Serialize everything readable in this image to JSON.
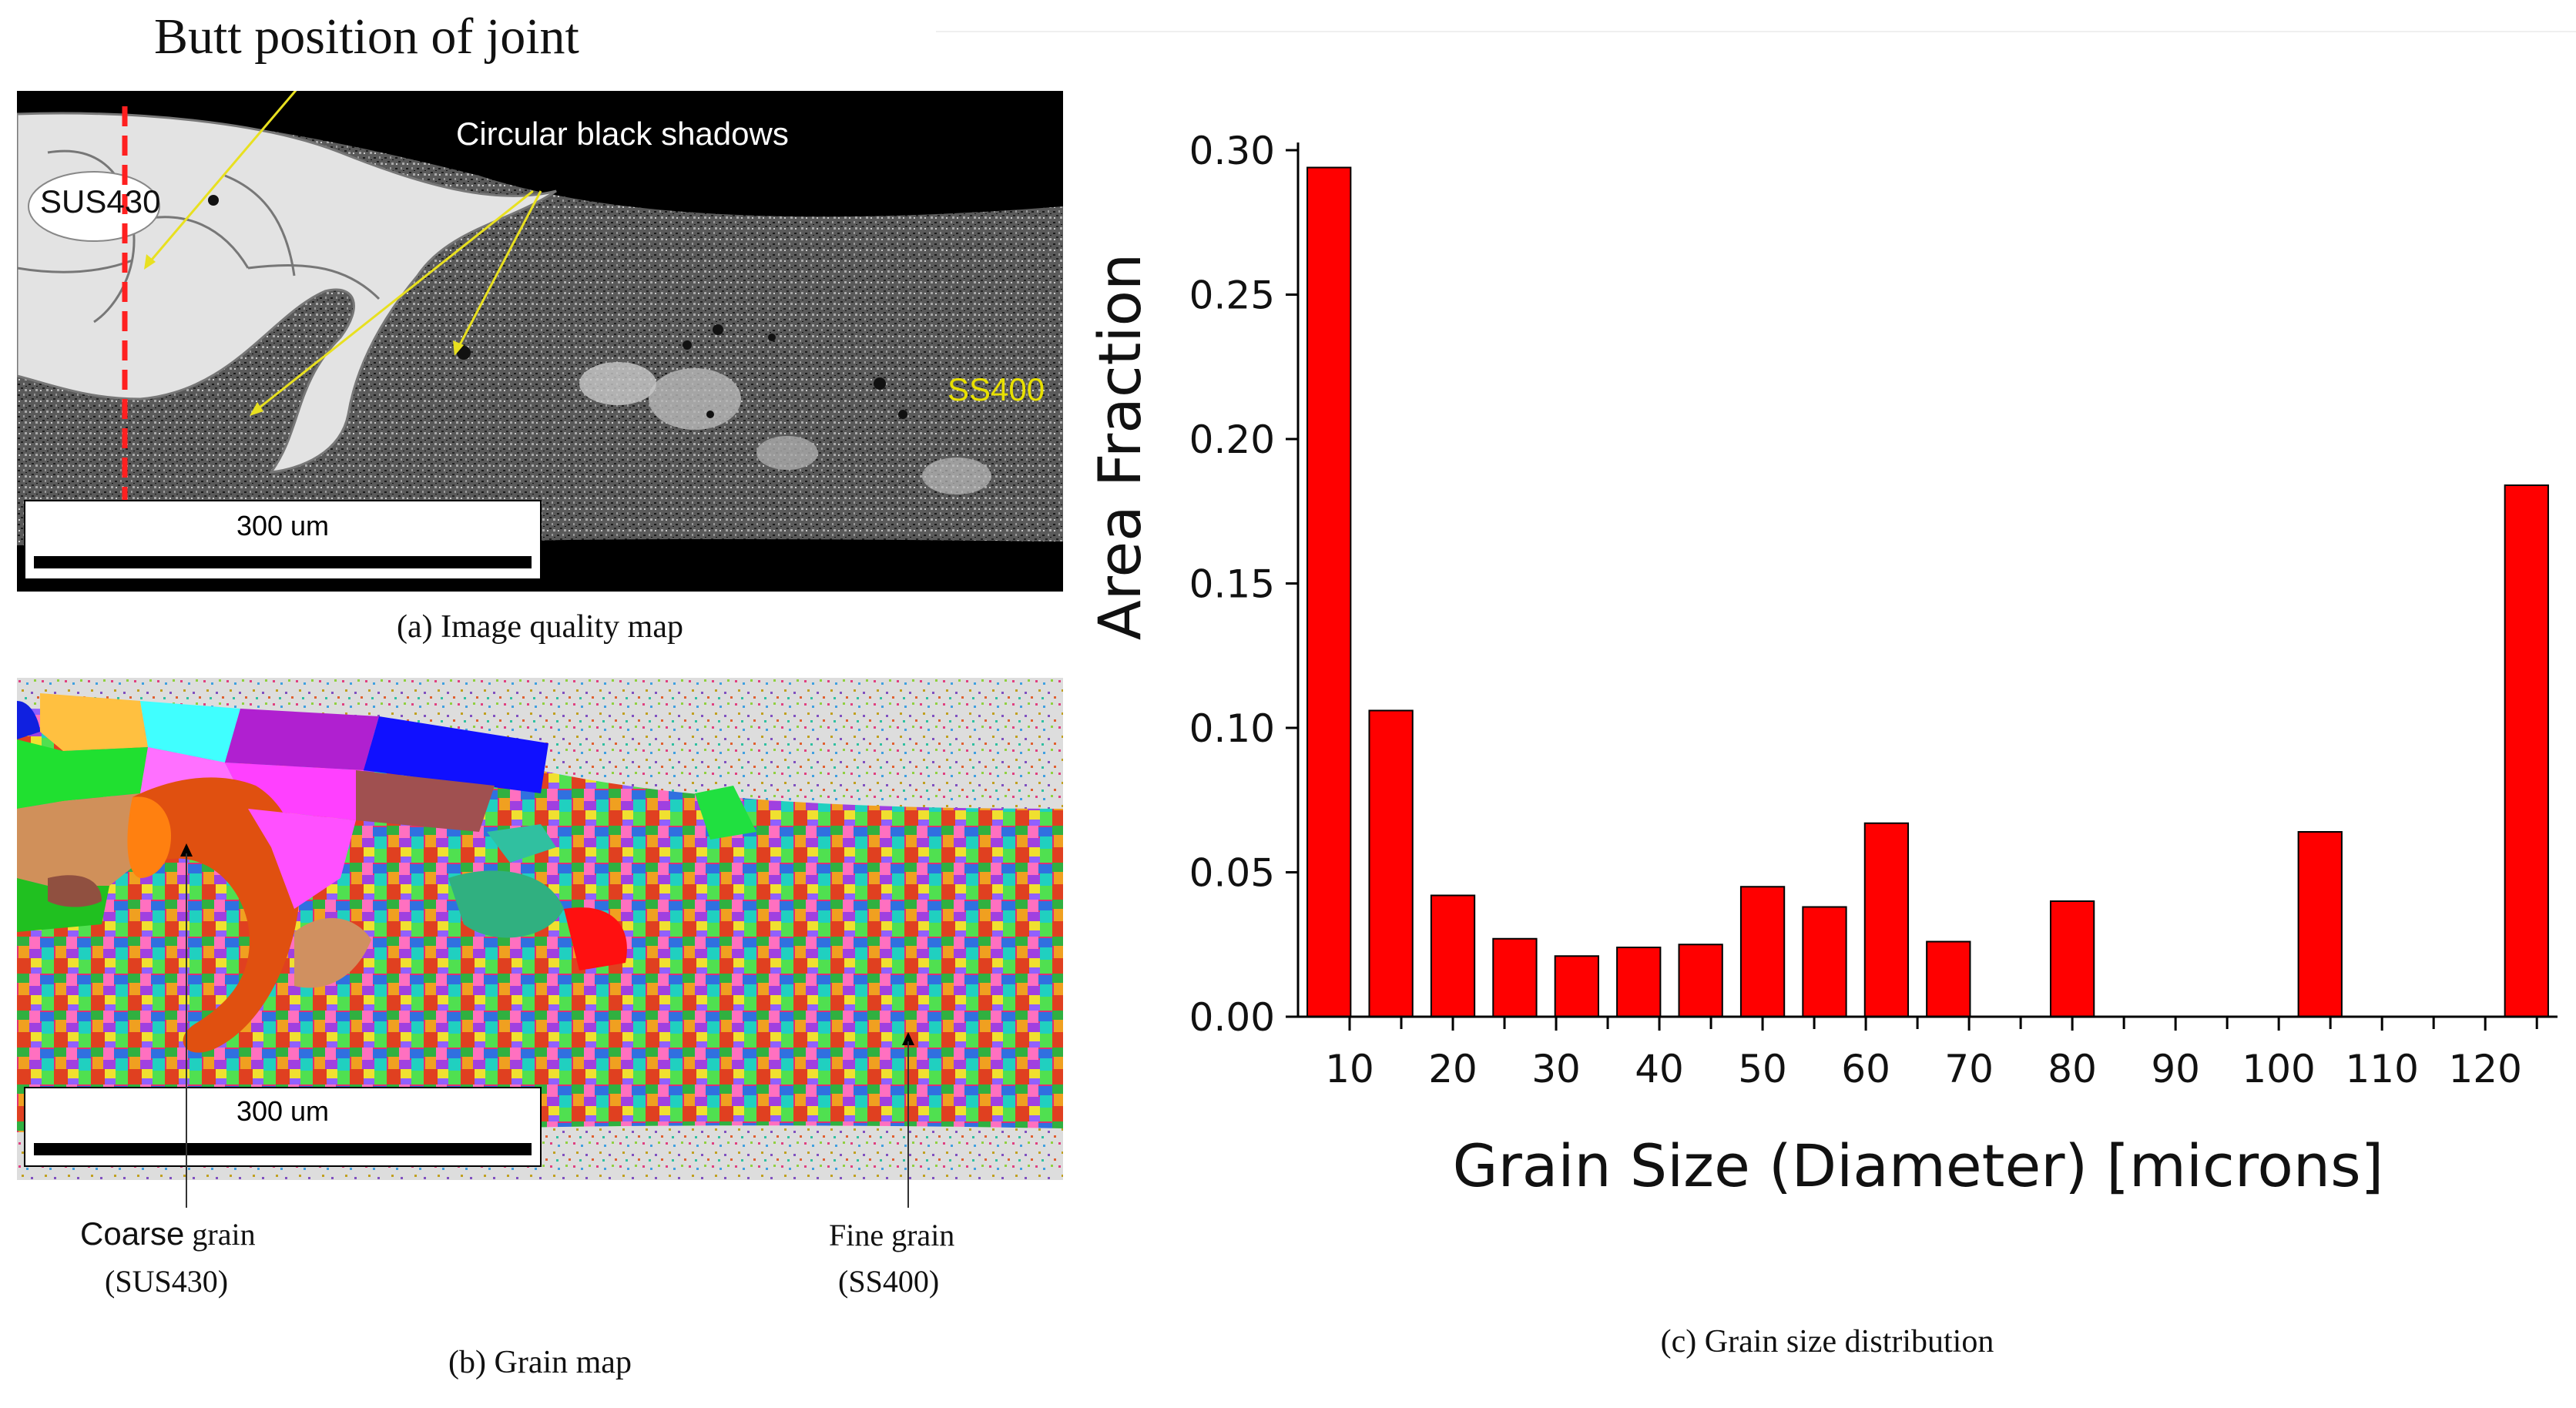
{
  "panel_a": {
    "callout_title": "Butt position of joint",
    "shadow_label": "Circular black shadows",
    "label_left": "SUS430",
    "label_right": "SS400",
    "scale_bar": "300 um",
    "caption": "(a) Image quality  map"
  },
  "panel_b": {
    "scale_bar": "300 um",
    "coarse_word": "Coarse",
    "coarse_rest": " grain",
    "coarse_material": "(SUS430)",
    "fine_label": "Fine grain",
    "fine_material": "(SS400)",
    "caption": "(b) Grain map"
  },
  "panel_c": {
    "caption": "(c) Grain size distribution"
  },
  "chart_data": {
    "type": "bar",
    "xlabel": "Grain Size (Diameter) [microns]",
    "ylabel": "Area Fraction",
    "ylim": [
      0,
      0.3
    ],
    "yticks": [
      "0.00",
      "0.05",
      "0.10",
      "0.15",
      "0.20",
      "0.25",
      "0.30"
    ],
    "xticks": [
      10,
      20,
      30,
      40,
      50,
      60,
      70,
      80,
      90,
      100,
      110,
      120
    ],
    "xlim": [
      5,
      127
    ],
    "bar_color": "#ff0000",
    "x": [
      8,
      14,
      20,
      26,
      32,
      38,
      44,
      50,
      56,
      62,
      68,
      80,
      104,
      124
    ],
    "values": [
      0.294,
      0.106,
      0.042,
      0.027,
      0.021,
      0.024,
      0.025,
      0.045,
      0.038,
      0.067,
      0.026,
      0.04,
      0.064,
      0.184
    ]
  }
}
